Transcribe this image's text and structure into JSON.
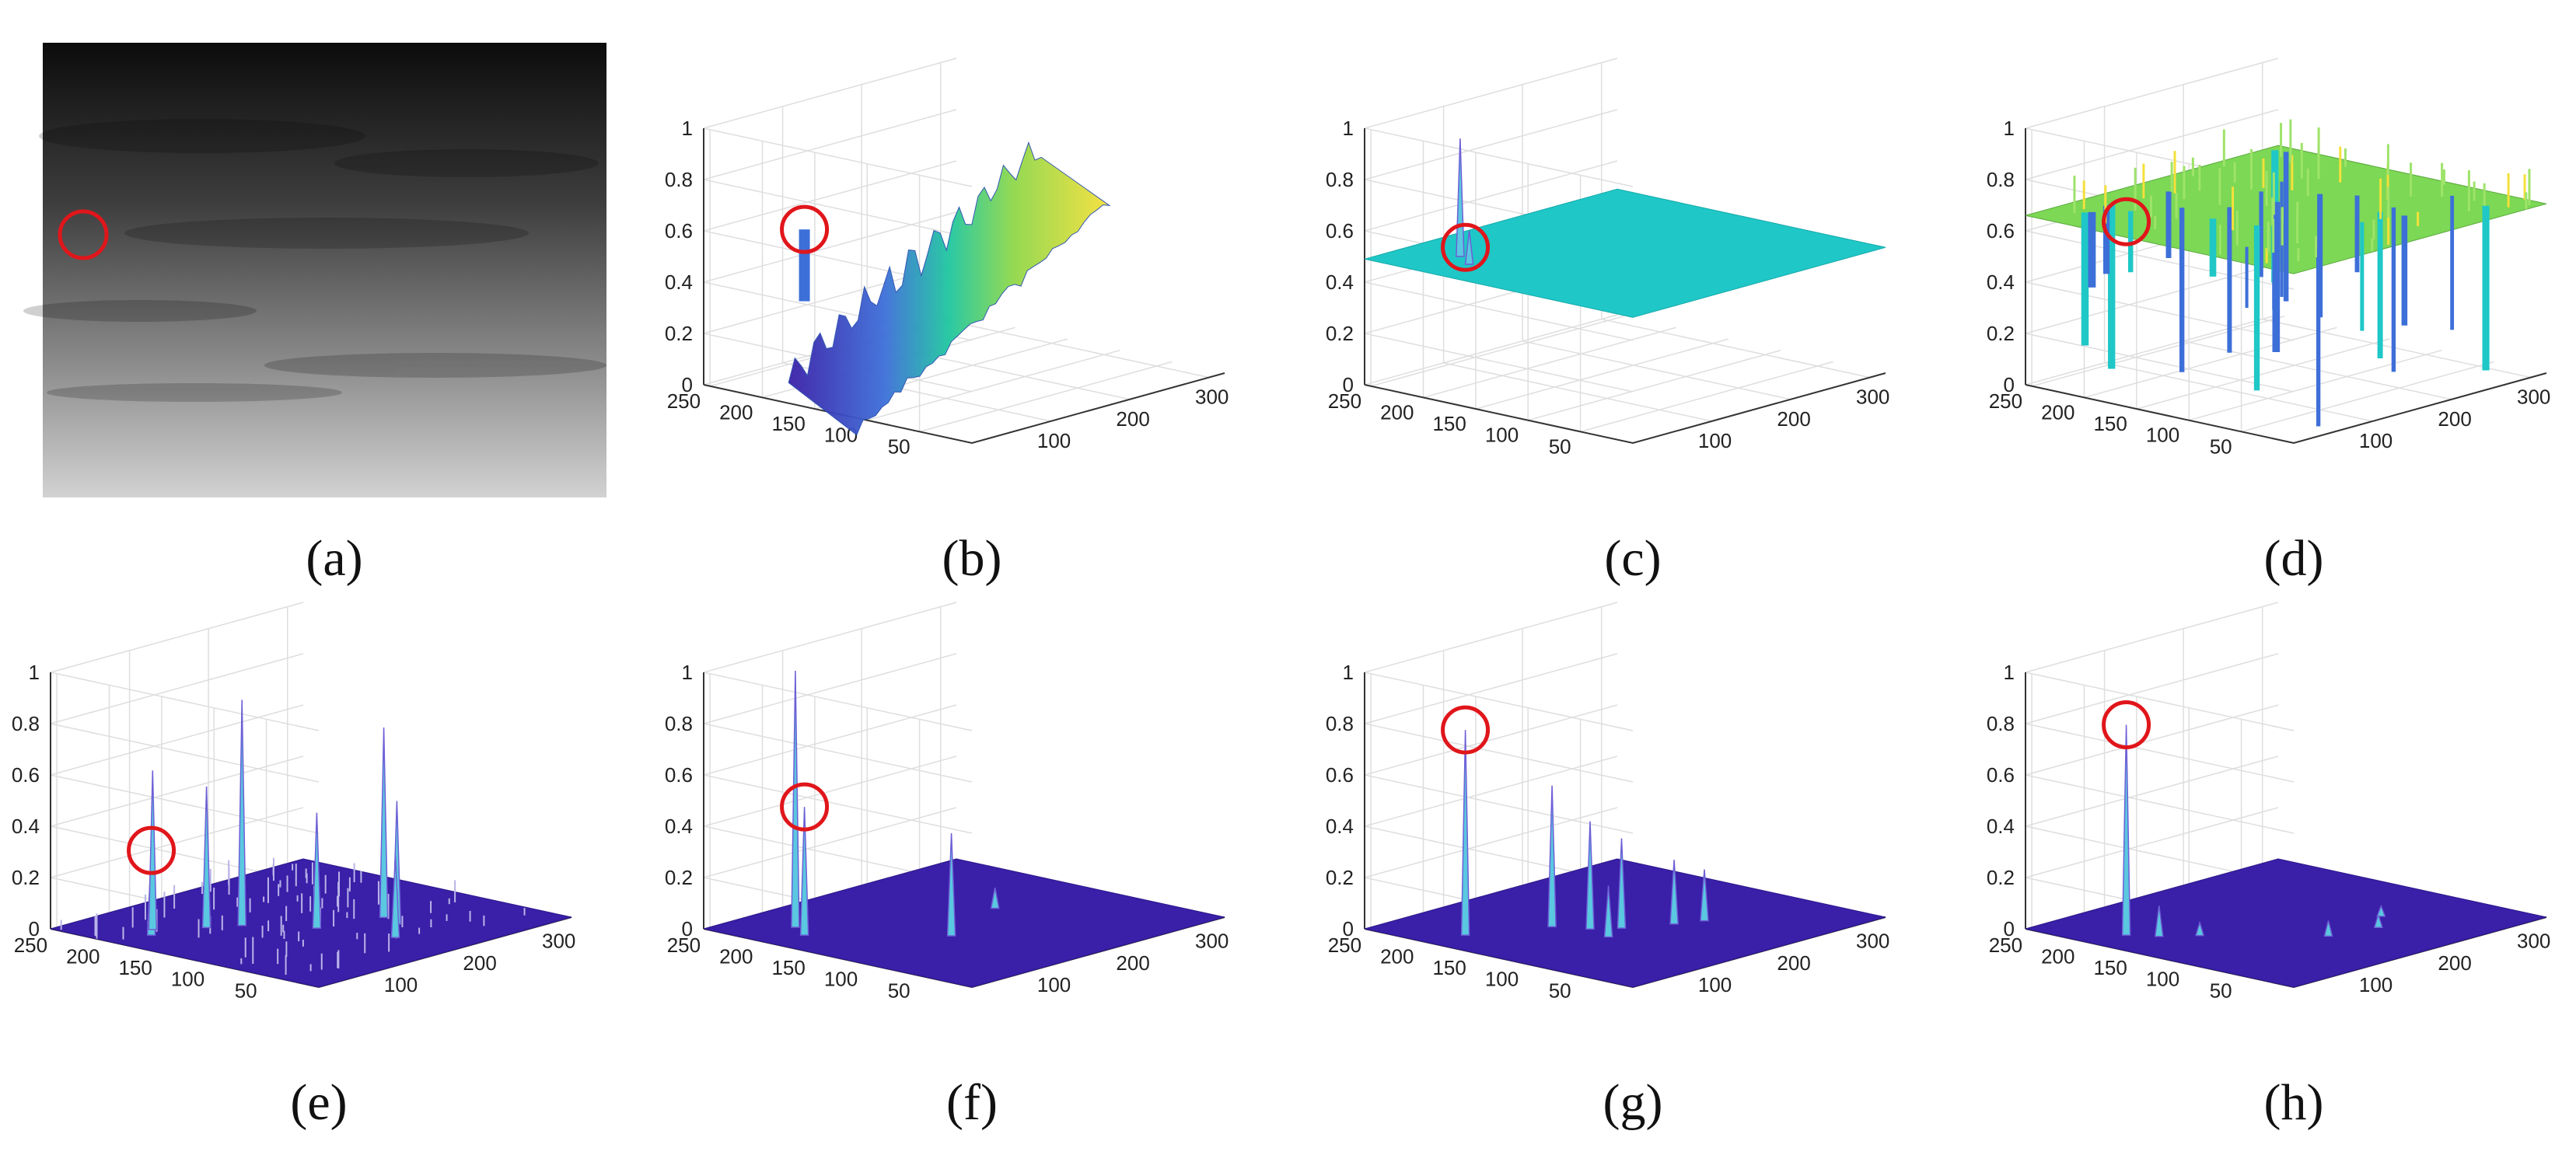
{
  "figure": {
    "layout": "2 rows x 4 columns",
    "background": "#ffffff",
    "ring_color": "#e0161b",
    "palette": {
      "deep": "#3a1fa8",
      "blue": "#3d6fd8",
      "cyan": "#1fc7c7",
      "green": "#7cd855",
      "yellow": "#f5e03a"
    }
  },
  "panel_a": {
    "caption": "(a)",
    "kind": "image",
    "description_free": true
  },
  "chart_data": [
    {
      "id": "b",
      "caption": "(b)",
      "type": "surface3d",
      "surface": "ramp",
      "x_ticks": [
        "100",
        "200",
        "300"
      ],
      "y_ticks": [
        "50",
        "100",
        "150",
        "200",
        "250"
      ],
      "z_ticks": [
        "0",
        "0.2",
        "0.4",
        "0.6",
        "0.8",
        "1"
      ],
      "xlim": [
        0,
        320
      ],
      "ylim": [
        0,
        256
      ],
      "zlim": [
        0,
        1
      ],
      "target": {
        "x": 40,
        "y": 190,
        "z": 0.63
      }
    },
    {
      "id": "c",
      "caption": "(c)",
      "type": "surface3d",
      "surface": "plane",
      "x_ticks": [
        "100",
        "200",
        "300"
      ],
      "y_ticks": [
        "50",
        "100",
        "150",
        "200",
        "250"
      ],
      "z_ticks": [
        "0",
        "0.2",
        "0.4",
        "0.6",
        "0.8",
        "1"
      ],
      "xlim": [
        0,
        320
      ],
      "ylim": [
        0,
        256
      ],
      "zlim": [
        0,
        1
      ],
      "base_level": 0.49,
      "target": {
        "x": 40,
        "y": 190,
        "z": 0.56
      },
      "spikes": [
        {
          "x": 60,
          "y": 210,
          "z": 0.95
        },
        {
          "x": 45,
          "y": 190,
          "z": 0.62
        }
      ]
    },
    {
      "id": "d",
      "caption": "(d)",
      "type": "surface3d",
      "surface": "rugged",
      "x_ticks": [
        "100",
        "200",
        "300"
      ],
      "y_ticks": [
        "50",
        "100",
        "150",
        "200",
        "250"
      ],
      "z_ticks": [
        "0",
        "0.2",
        "0.4",
        "0.6",
        "0.8",
        "1"
      ],
      "xlim": [
        0,
        320
      ],
      "ylim": [
        0,
        256
      ],
      "zlim": [
        0,
        1
      ],
      "base_level": 0.66,
      "target": {
        "x": 40,
        "y": 190,
        "z": 0.66
      }
    },
    {
      "id": "e",
      "caption": "(e)",
      "type": "surface3d",
      "surface": "spiky",
      "x_ticks": [
        "100",
        "200",
        "300"
      ],
      "y_ticks": [
        "50",
        "100",
        "150",
        "200",
        "250"
      ],
      "z_ticks": [
        "0",
        "0.2",
        "0.4",
        "0.6",
        "0.8",
        "1"
      ],
      "xlim": [
        0,
        320
      ],
      "ylim": [
        0,
        256
      ],
      "zlim": [
        0,
        1
      ],
      "target": {
        "x": 40,
        "y": 190,
        "z": 0.33
      },
      "spikes": [
        {
          "x": 40,
          "y": 190,
          "z": 0.33
        },
        {
          "x": 55,
          "y": 200,
          "z": 0.62
        },
        {
          "x": 90,
          "y": 175,
          "z": 0.55
        },
        {
          "x": 115,
          "y": 160,
          "z": 0.88
        },
        {
          "x": 150,
          "y": 115,
          "z": 0.45
        },
        {
          "x": 215,
          "y": 100,
          "z": 0.74
        },
        {
          "x": 205,
          "y": 80,
          "z": 0.48
        },
        {
          "x": 170,
          "y": 55,
          "z": 0.32
        }
      ]
    },
    {
      "id": "f",
      "caption": "(f)",
      "type": "surface3d",
      "surface": "flat",
      "x_ticks": [
        "100",
        "200",
        "300"
      ],
      "y_ticks": [
        "50",
        "100",
        "150",
        "200",
        "250"
      ],
      "z_ticks": [
        "0",
        "0.2",
        "0.4",
        "0.6",
        "0.8",
        "1"
      ],
      "xlim": [
        0,
        320
      ],
      "ylim": [
        0,
        256
      ],
      "zlim": [
        0,
        1
      ],
      "target": {
        "x": 40,
        "y": 190,
        "z": 0.5
      },
      "spikes": [
        {
          "x": 40,
          "y": 190,
          "z": 0.5
        },
        {
          "x": 55,
          "y": 210,
          "z": 1.0
        },
        {
          "x": 120,
          "y": 110,
          "z": 0.4
        },
        {
          "x": 215,
          "y": 140,
          "z": 0.08
        }
      ]
    },
    {
      "id": "g",
      "caption": "(g)",
      "type": "surface3d",
      "surface": "flat",
      "x_ticks": [
        "100",
        "200",
        "300"
      ],
      "y_ticks": [
        "50",
        "100",
        "150",
        "200",
        "250"
      ],
      "z_ticks": [
        "0",
        "0.2",
        "0.4",
        "0.6",
        "0.8",
        "1"
      ],
      "xlim": [
        0,
        320
      ],
      "ylim": [
        0,
        256
      ],
      "zlim": [
        0,
        1
      ],
      "target": {
        "x": 40,
        "y": 190,
        "z": 0.8
      },
      "spikes": [
        {
          "x": 40,
          "y": 190,
          "z": 0.8
        },
        {
          "x": 110,
          "y": 160,
          "z": 0.55
        },
        {
          "x": 125,
          "y": 135,
          "z": 0.42
        },
        {
          "x": 145,
          "y": 120,
          "z": 0.35
        },
        {
          "x": 115,
          "y": 110,
          "z": 0.2
        },
        {
          "x": 185,
          "y": 100,
          "z": 0.25
        },
        {
          "x": 210,
          "y": 90,
          "z": 0.2
        }
      ]
    },
    {
      "id": "h",
      "caption": "(h)",
      "type": "surface3d",
      "surface": "flat",
      "x_ticks": [
        "100",
        "200",
        "300"
      ],
      "y_ticks": [
        "50",
        "100",
        "150",
        "200",
        "250"
      ],
      "z_ticks": [
        "0",
        "0.2",
        "0.4",
        "0.6",
        "0.8",
        "1"
      ],
      "xlim": [
        0,
        320
      ],
      "ylim": [
        0,
        256
      ],
      "zlim": [
        0,
        1
      ],
      "target": {
        "x": 40,
        "y": 190,
        "z": 0.82
      },
      "spikes": [
        {
          "x": 40,
          "y": 190,
          "z": 0.82
        },
        {
          "x": 55,
          "y": 170,
          "z": 0.12
        },
        {
          "x": 80,
          "y": 150,
          "z": 0.05
        },
        {
          "x": 150,
          "y": 80,
          "z": 0.06
        },
        {
          "x": 200,
          "y": 70,
          "z": 0.05
        },
        {
          "x": 230,
          "y": 90,
          "z": 0.04
        }
      ]
    }
  ]
}
